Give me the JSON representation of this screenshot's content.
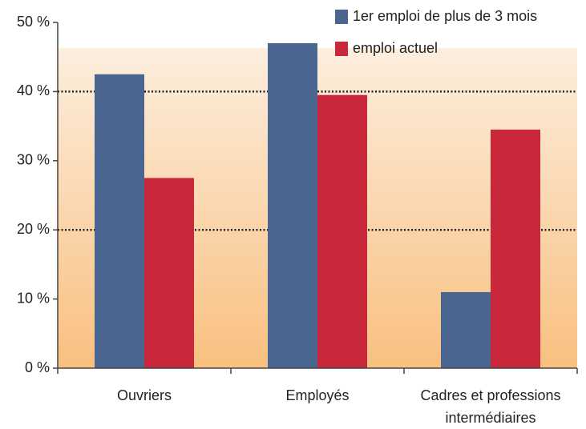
{
  "chart_data": {
    "type": "bar",
    "categories": [
      "Ouvriers",
      "Employés",
      "Cadres et professions\nintermédiaires"
    ],
    "series": [
      {
        "name": "1er emploi de plus de 3 mois",
        "color": "#4a6690",
        "values": [
          42.5,
          47,
          11
        ]
      },
      {
        "name": "emploi actuel",
        "color": "#c8283a",
        "values": [
          27.5,
          39.5,
          34.5
        ]
      }
    ],
    "ylim": [
      0,
      50
    ],
    "yticks": [
      {
        "value": 0,
        "label": "0 %"
      },
      {
        "value": 10,
        "label": "10 %"
      },
      {
        "value": 20,
        "label": "20 %"
      },
      {
        "value": 30,
        "label": "30 %"
      },
      {
        "value": 40,
        "label": "40 %"
      },
      {
        "value": 50,
        "label": "50 %"
      }
    ],
    "gridlines": [
      20,
      40
    ]
  }
}
